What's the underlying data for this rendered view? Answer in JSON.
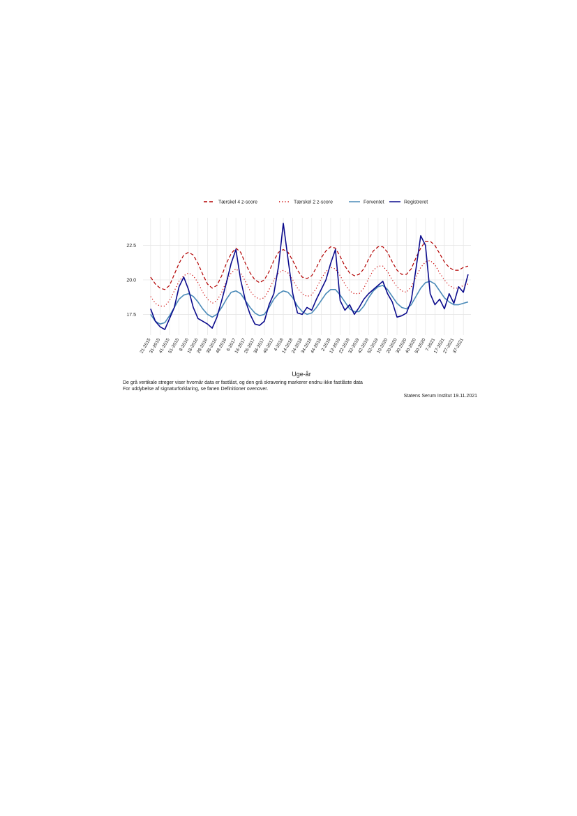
{
  "chart_data": {
    "type": "line",
    "x": [
      0,
      5,
      10,
      15,
      20,
      25,
      30,
      35,
      40,
      45,
      50,
      55,
      60,
      65,
      70,
      75,
      80,
      85,
      90,
      95,
      100,
      105,
      110,
      115,
      120,
      125,
      130,
      135,
      140,
      145,
      150,
      155,
      160,
      165,
      170,
      175,
      180,
      185,
      190,
      195,
      200,
      205,
      210,
      215,
      220,
      225,
      230,
      235,
      240,
      245,
      250,
      255,
      260,
      265,
      270,
      275,
      280,
      285,
      290,
      295,
      300,
      305,
      310,
      315,
      320,
      325,
      330,
      335
    ],
    "xlim": [
      -8,
      338
    ],
    "xticks": [
      {
        "value": 0,
        "label": "21-2015"
      },
      {
        "value": 10,
        "label": "31-2015"
      },
      {
        "value": 20,
        "label": "41-2015"
      },
      {
        "value": 30,
        "label": "51-2015"
      },
      {
        "value": 40,
        "label": "8-2016"
      },
      {
        "value": 50,
        "label": "18-2016"
      },
      {
        "value": 60,
        "label": "28-2016"
      },
      {
        "value": 70,
        "label": "38-2016"
      },
      {
        "value": 80,
        "label": "48-2016"
      },
      {
        "value": 90,
        "label": "6-2017"
      },
      {
        "value": 100,
        "label": "16-2017"
      },
      {
        "value": 110,
        "label": "26-2017"
      },
      {
        "value": 120,
        "label": "36-2017"
      },
      {
        "value": 130,
        "label": "46-2017"
      },
      {
        "value": 140,
        "label": "4-2018"
      },
      {
        "value": 150,
        "label": "14-2018"
      },
      {
        "value": 160,
        "label": "24-2018"
      },
      {
        "value": 170,
        "label": "34-2018"
      },
      {
        "value": 180,
        "label": "44-2018"
      },
      {
        "value": 190,
        "label": "2-2019"
      },
      {
        "value": 200,
        "label": "12-2019"
      },
      {
        "value": 210,
        "label": "22-2019"
      },
      {
        "value": 220,
        "label": "32-2019"
      },
      {
        "value": 230,
        "label": "42-2019"
      },
      {
        "value": 240,
        "label": "52-2019"
      },
      {
        "value": 250,
        "label": "10-2020"
      },
      {
        "value": 260,
        "label": "20-2020"
      },
      {
        "value": 270,
        "label": "30-2020"
      },
      {
        "value": 280,
        "label": "40-2020"
      },
      {
        "value": 290,
        "label": "50-2020"
      },
      {
        "value": 300,
        "label": "7-2021"
      },
      {
        "value": 310,
        "label": "17-2021"
      },
      {
        "value": 320,
        "label": "27-2021"
      },
      {
        "value": 330,
        "label": "37-2021"
      }
    ],
    "ylim": [
      16,
      24.5
    ],
    "yticks": [
      17.5,
      {
        "value": 20,
        "label": "20.0"
      },
      22.5
    ],
    "grid": true,
    "legend": "top",
    "x_label": "Uge-år",
    "captions": [
      "De grå vertikale streger viser hvornår data er fastlåst, og den grå skravering markerer endnu ikke fastlåste data",
      "For uddybelse af signaturforklaring, se fanen Definitioner ovenover."
    ],
    "source": "Statens Serum Institut  19.11.2021",
    "series": [
      {
        "name": "Tærskel 4 z-score",
        "color": "#b30000",
        "linestyle": "dashed",
        "values": [
          20.2,
          19.7,
          19.4,
          19.3,
          19.6,
          20.4,
          21.2,
          21.8,
          22.0,
          21.8,
          21.2,
          20.4,
          19.7,
          19.4,
          19.6,
          20.3,
          21.2,
          21.9,
          22.3,
          22.0,
          21.2,
          20.5,
          20.0,
          19.8,
          20.0,
          20.6,
          21.4,
          22.0,
          22.2,
          22.0,
          21.4,
          20.7,
          20.2,
          20.1,
          20.3,
          20.9,
          21.6,
          22.1,
          22.4,
          22.3,
          21.7,
          21.0,
          20.5,
          20.3,
          20.4,
          20.8,
          21.5,
          22.1,
          22.4,
          22.4,
          22.0,
          21.3,
          20.7,
          20.4,
          20.4,
          20.8,
          21.6,
          22.3,
          22.8,
          22.8,
          22.5,
          21.9,
          21.3,
          20.9,
          20.7,
          20.7,
          20.9,
          21.0
        ]
      },
      {
        "name": "Tærskel 2 z-score",
        "color": "#cc0000",
        "linestyle": "dotted",
        "values": [
          18.8,
          18.3,
          18.1,
          18.1,
          18.5,
          19.2,
          19.9,
          20.3,
          20.5,
          20.3,
          19.8,
          19.1,
          18.6,
          18.3,
          18.5,
          19.1,
          19.9,
          20.5,
          20.8,
          20.5,
          19.9,
          19.2,
          18.8,
          18.6,
          18.7,
          19.3,
          20.0,
          20.5,
          20.7,
          20.5,
          20.0,
          19.4,
          19.0,
          18.8,
          18.9,
          19.4,
          20.1,
          20.6,
          20.9,
          20.8,
          20.3,
          19.7,
          19.2,
          19.0,
          19.0,
          19.4,
          20.1,
          20.7,
          21.0,
          21.0,
          20.6,
          20.0,
          19.5,
          19.2,
          19.1,
          19.5,
          20.2,
          20.9,
          21.3,
          21.4,
          21.1,
          20.5,
          20.0,
          19.6,
          19.4,
          19.4,
          19.6,
          19.7
        ]
      },
      {
        "name": "Forventet",
        "color": "#4a8ab8",
        "linestyle": "solid",
        "values": [
          17.5,
          17.0,
          16.8,
          16.9,
          17.4,
          18.0,
          18.6,
          18.9,
          19.0,
          18.8,
          18.4,
          17.9,
          17.5,
          17.3,
          17.5,
          18.0,
          18.6,
          19.1,
          19.2,
          19.0,
          18.5,
          18.0,
          17.6,
          17.4,
          17.5,
          18.0,
          18.6,
          19.0,
          19.2,
          19.1,
          18.7,
          18.1,
          17.7,
          17.5,
          17.6,
          18.0,
          18.5,
          19.0,
          19.3,
          19.3,
          18.9,
          18.4,
          17.9,
          17.7,
          17.7,
          18.1,
          18.7,
          19.2,
          19.5,
          19.6,
          19.3,
          18.8,
          18.3,
          18.0,
          17.9,
          18.2,
          18.8,
          19.4,
          19.8,
          19.9,
          19.7,
          19.2,
          18.7,
          18.4,
          18.2,
          18.2,
          18.3,
          18.4
        ]
      },
      {
        "name": "Registreret",
        "color": "#0a0a8c",
        "linestyle": "solid",
        "values": [
          17.9,
          17.0,
          16.6,
          16.4,
          17.2,
          18.0,
          19.5,
          20.2,
          19.3,
          18.0,
          17.2,
          17.0,
          16.8,
          16.5,
          17.3,
          18.5,
          19.8,
          21.2,
          22.2,
          20.0,
          18.5,
          17.5,
          16.8,
          16.7,
          17.0,
          18.2,
          19.0,
          21.0,
          24.1,
          21.5,
          19.0,
          17.6,
          17.5,
          18.0,
          17.8,
          18.6,
          19.3,
          20.0,
          21.2,
          22.2,
          18.5,
          17.8,
          18.2,
          17.5,
          18.0,
          18.6,
          19.0,
          19.3,
          19.6,
          19.9,
          19.0,
          18.4,
          17.3,
          17.4,
          17.6,
          18.5,
          20.8,
          23.2,
          22.5,
          19.0,
          18.2,
          18.6,
          17.9,
          19.0,
          18.3,
          19.5,
          19.1,
          20.4
        ]
      }
    ]
  }
}
